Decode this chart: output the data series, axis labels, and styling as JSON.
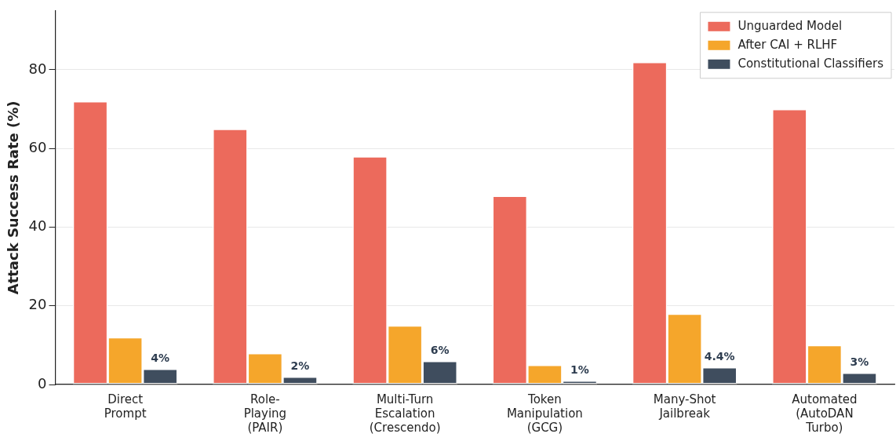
{
  "chart_data": {
    "type": "bar",
    "ylabel": "Attack Success Rate (%)",
    "categories": [
      "Direct\nPrompt",
      "Role-\nPlaying\n(PAIR)",
      "Multi-Turn\nEscalation\n(Crescendo)",
      "Token\nManipulation\n(GCG)",
      "Many-Shot\nJailbreak",
      "Automated\n(AutoDAN\nTurbo)"
    ],
    "series": [
      {
        "name": "Unguarded Model",
        "color": "#ec6a5c",
        "values": [
          72,
          65,
          58,
          48,
          82,
          70
        ]
      },
      {
        "name": "After CAI + RLHF",
        "color": "#f5a62b",
        "values": [
          12,
          8,
          15,
          5,
          18,
          10
        ]
      },
      {
        "name": "Constitutional Classifiers",
        "color": "#3f4d5e",
        "values": [
          4,
          2,
          6,
          1,
          4.4,
          3
        ],
        "value_labels": [
          "4%",
          "2%",
          "6%",
          "1%",
          "4.4%",
          "3%"
        ]
      }
    ],
    "ylim": [
      0,
      95
    ],
    "yticks": [
      0,
      20,
      40,
      60,
      80
    ],
    "grid": "y",
    "legend": "top right"
  }
}
